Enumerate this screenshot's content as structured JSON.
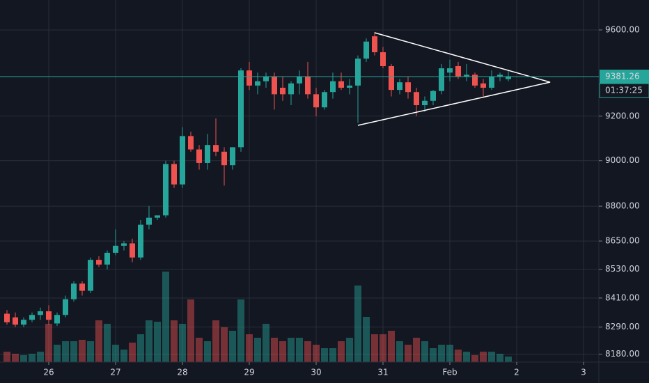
{
  "chart_data": {
    "type": "candlestick",
    "log_scale": true,
    "grid": true,
    "up_color": "#26a69a",
    "down_color": "#ef5350",
    "x": [
      9,
      12,
      15,
      18,
      21,
      24,
      27,
      30,
      33,
      36,
      39,
      42,
      45,
      48,
      51,
      54,
      57,
      60,
      63,
      66,
      69,
      72,
      75,
      78,
      81,
      84,
      87,
      90,
      93,
      96,
      99,
      102,
      105,
      108,
      111,
      114,
      117,
      120,
      123,
      126,
      129,
      132,
      135,
      138,
      141,
      144,
      147,
      150,
      153,
      156,
      159,
      162,
      165,
      168,
      171,
      174,
      177,
      180,
      183,
      186,
      189
    ],
    "open": [
      8345,
      8330,
      8300,
      8320,
      8340,
      8355,
      8305,
      8340,
      8405,
      8470,
      8440,
      8570,
      8550,
      8600,
      8630,
      8640,
      8580,
      8720,
      8750,
      8760,
      8985,
      8895,
      9110,
      9050,
      8990,
      9070,
      9040,
      8980,
      9060,
      9410,
      9340,
      9360,
      9380,
      9330,
      9300,
      9350,
      9380,
      9300,
      9240,
      9310,
      9360,
      9330,
      9340,
      9465,
      9570,
      9495,
      9430,
      9320,
      9355,
      9310,
      9250,
      9270,
      9315,
      9400,
      9430,
      9380,
      9390,
      9350,
      9330,
      9380,
      9370
    ],
    "high": [
      8360,
      8350,
      8330,
      8350,
      8370,
      8380,
      8350,
      8420,
      8480,
      8480,
      8580,
      8585,
      8610,
      8700,
      8650,
      8660,
      8740,
      8800,
      8760,
      9000,
      9000,
      9150,
      9130,
      9070,
      9120,
      9190,
      9060,
      9060,
      9420,
      9450,
      9400,
      9400,
      9400,
      9380,
      9360,
      9410,
      9450,
      9330,
      9320,
      9400,
      9400,
      9370,
      9480,
      9560,
      9590,
      9520,
      9440,
      9370,
      9380,
      9330,
      9290,
      9320,
      9440,
      9460,
      9450,
      9440,
      9400,
      9370,
      9410,
      9400,
      9410
    ],
    "low": [
      8300,
      8290,
      8290,
      8310,
      8320,
      8300,
      8295,
      8330,
      8395,
      8420,
      8430,
      8540,
      8530,
      8590,
      8610,
      8560,
      8570,
      8700,
      8740,
      8750,
      8880,
      8880,
      9040,
      8960,
      8960,
      9020,
      8890,
      8960,
      9040,
      9320,
      9300,
      9330,
      9230,
      9270,
      9250,
      9300,
      9280,
      9200,
      9230,
      9280,
      9320,
      9300,
      9170,
      9450,
      9480,
      9420,
      9290,
      9300,
      9280,
      9200,
      9220,
      9250,
      9300,
      9360,
      9370,
      9360,
      9330,
      9290,
      9320,
      9360,
      9360
    ],
    "close": [
      8310,
      8300,
      8320,
      8340,
      8355,
      8320,
      8340,
      8405,
      8470,
      8440,
      8570,
      8550,
      8600,
      8630,
      8640,
      8580,
      8720,
      8750,
      8760,
      8985,
      8895,
      9110,
      9050,
      8990,
      9070,
      9040,
      8980,
      9060,
      9410,
      9340,
      9360,
      9380,
      9300,
      9300,
      9350,
      9380,
      9300,
      9240,
      9310,
      9360,
      9330,
      9340,
      9465,
      9545,
      9495,
      9430,
      9320,
      9355,
      9310,
      9250,
      9270,
      9315,
      9420,
      9420,
      9380,
      9390,
      9340,
      9330,
      9380,
      9390,
      9381.26
    ],
    "volume": [
      15,
      12,
      10,
      12,
      15,
      55,
      25,
      30,
      30,
      32,
      30,
      60,
      55,
      25,
      18,
      28,
      40,
      60,
      58,
      130,
      60,
      55,
      90,
      35,
      30,
      60,
      50,
      45,
      90,
      40,
      35,
      55,
      35,
      30,
      35,
      35,
      30,
      25,
      20,
      20,
      30,
      35,
      110,
      65,
      40,
      40,
      45,
      30,
      25,
      35,
      30,
      20,
      25,
      25,
      18,
      15,
      10,
      15,
      15,
      12,
      8
    ],
    "xlim": [
      6.5,
      221.5
    ],
    "xticks": [
      {
        "value": 24,
        "label": "26"
      },
      {
        "value": 48,
        "label": "27"
      },
      {
        "value": 72,
        "label": "28"
      },
      {
        "value": 96,
        "label": "29"
      },
      {
        "value": 120,
        "label": "30"
      },
      {
        "value": 144,
        "label": "31"
      },
      {
        "value": 168,
        "label": "Feb"
      },
      {
        "value": 192,
        "label": "2"
      },
      {
        "value": 216,
        "label": "3"
      }
    ],
    "ylim": [
      8148,
      9743
    ],
    "yticks": [
      {
        "value": 8180,
        "label": "8180.00"
      },
      {
        "value": 8290,
        "label": "8290.00"
      },
      {
        "value": 8410,
        "label": "8410.00"
      },
      {
        "value": 8530,
        "label": "8530.00"
      },
      {
        "value": 8650,
        "label": "8650.00"
      },
      {
        "value": 8800,
        "label": "8800.00"
      },
      {
        "value": 9000,
        "label": "9000.00"
      },
      {
        "value": 9200,
        "label": "9200.00"
      },
      {
        "value": 9600,
        "label": "9600.00"
      }
    ],
    "last_price": 9381.26,
    "countdown": "01:37:25"
  }
}
